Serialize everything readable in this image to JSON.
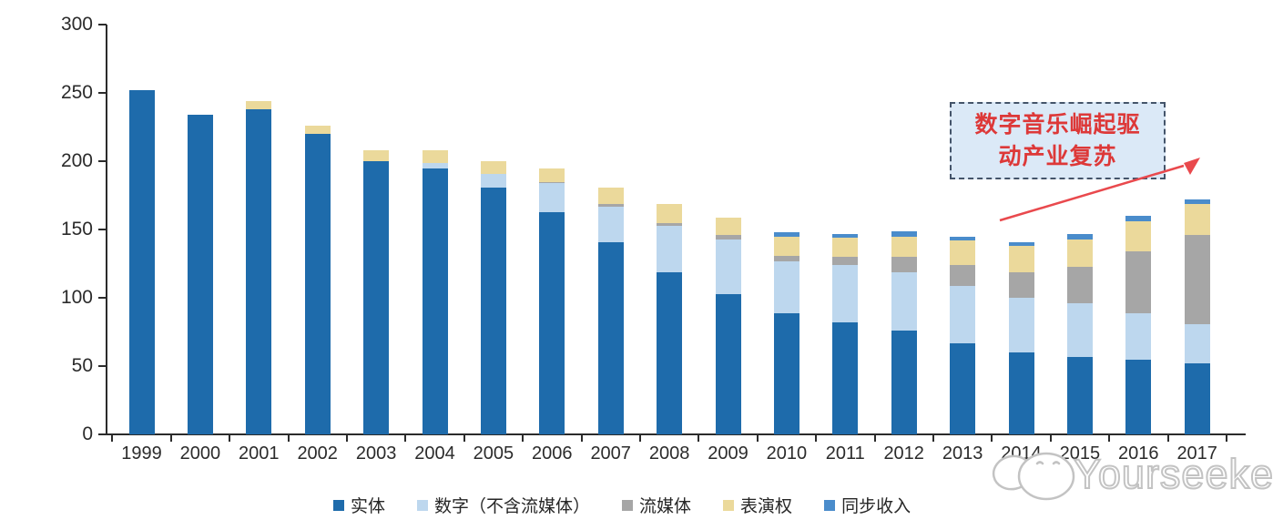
{
  "chart_data": {
    "type": "bar",
    "stacked": true,
    "categories": [
      "1999",
      "2000",
      "2001",
      "2002",
      "2003",
      "2004",
      "2005",
      "2006",
      "2007",
      "2008",
      "2009",
      "2010",
      "2011",
      "2012",
      "2013",
      "2014",
      "2015",
      "2016",
      "2017"
    ],
    "series": [
      {
        "name": "实体",
        "color": "#1E6BAB",
        "values": [
          252,
          234,
          238,
          220,
          200,
          195,
          181,
          163,
          141,
          119,
          103,
          89,
          82,
          76,
          67,
          60,
          57,
          55,
          52
        ]
      },
      {
        "name": "数字（不含流媒体）",
        "color": "#BDD7EE",
        "values": [
          0,
          0,
          0,
          0,
          0,
          4,
          10,
          21,
          26,
          34,
          40,
          38,
          42,
          43,
          42,
          40,
          39,
          34,
          29
        ]
      },
      {
        "name": "流媒体",
        "color": "#A6A6A6",
        "values": [
          0,
          0,
          0,
          0,
          0,
          0,
          0,
          1,
          2,
          2,
          3,
          4,
          6,
          11,
          15,
          19,
          27,
          45,
          65
        ]
      },
      {
        "name": "表演权",
        "color": "#EBD99B",
        "values": [
          0,
          0,
          6,
          6,
          8,
          9,
          9,
          10,
          12,
          14,
          13,
          14,
          14,
          15,
          18,
          19,
          20,
          22,
          23
        ]
      },
      {
        "name": "同步收入",
        "color": "#4A8CCB",
        "values": [
          0,
          0,
          0,
          0,
          0,
          0,
          0,
          0,
          0,
          0,
          0,
          3,
          3,
          4,
          3,
          3,
          4,
          4,
          3
        ]
      }
    ],
    "ylim": [
      0,
      300
    ],
    "yticks": [
      0,
      50,
      100,
      150,
      200,
      250,
      300
    ],
    "grid": false,
    "legend_position": "bottom",
    "axis_color": "#2b2b2b"
  },
  "annotation": {
    "text": "数字音乐崛起驱动产业复苏",
    "lines": [
      "数字音乐崛起驱",
      "动产业复苏"
    ],
    "text_color": "#DD3838",
    "fill_color": "#DBE9F7",
    "border_color": "#44546A",
    "arrow_color": "#E9494D"
  },
  "watermark": {
    "text": "Yourseeker",
    "logo_icon": "yourseeker-mascot-icon",
    "color": "#c3c3c3"
  }
}
